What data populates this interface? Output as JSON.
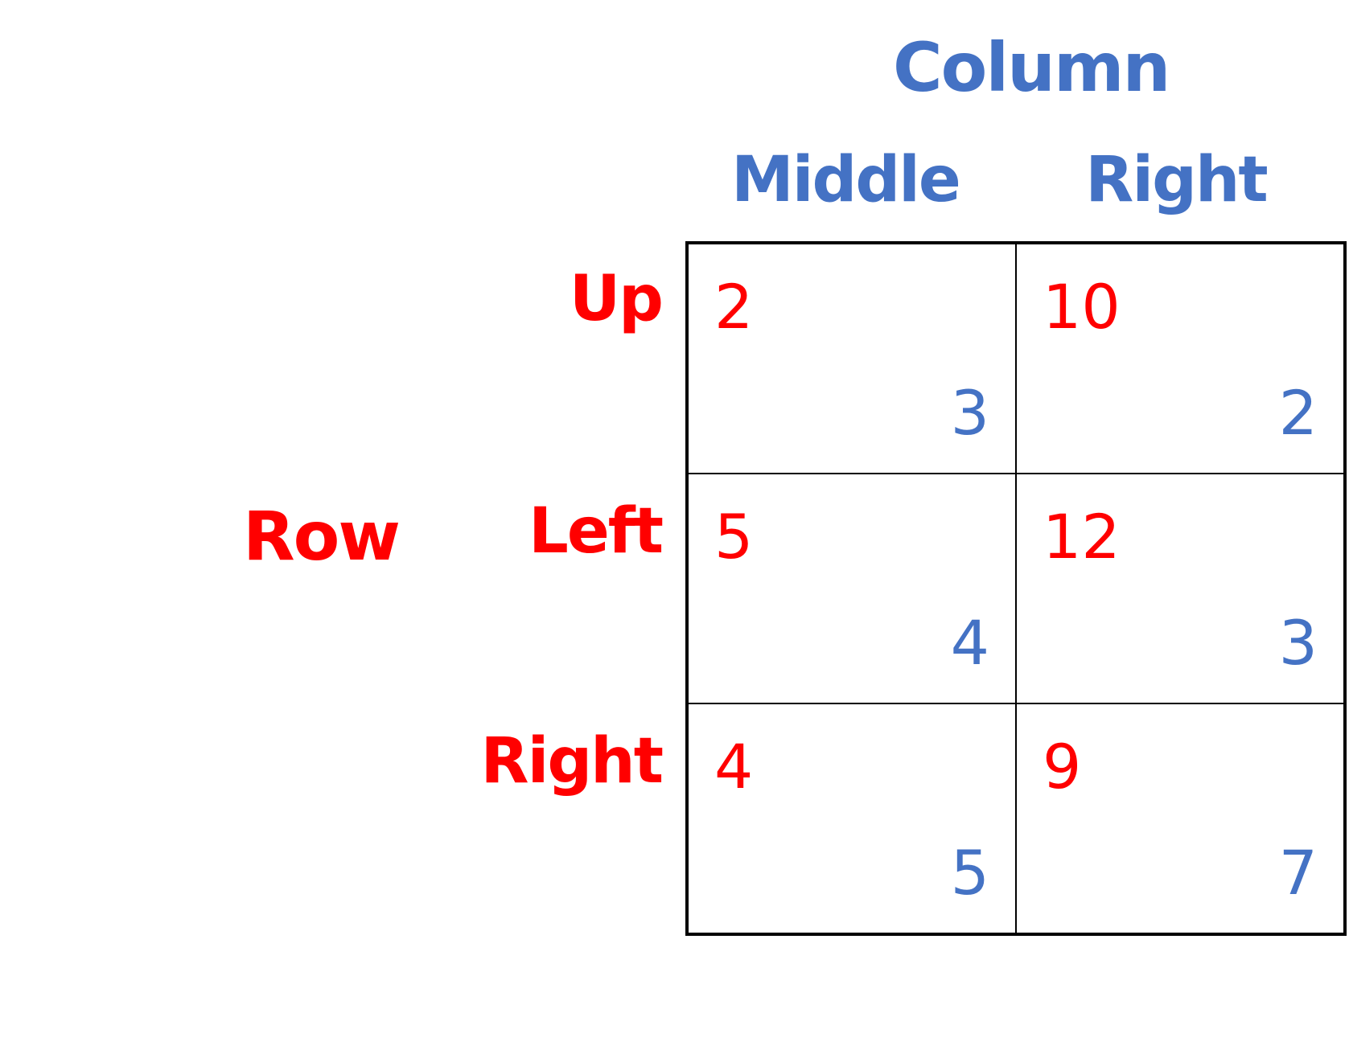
{
  "column_player": "Column",
  "row_player": "Row",
  "column_strategies": [
    "Middle",
    "Right"
  ],
  "row_strategies": [
    "Up",
    "Left",
    "Right"
  ],
  "payoffs": [
    [
      {
        "row": "2",
        "col": "3"
      },
      {
        "row": "10",
        "col": "2"
      }
    ],
    [
      {
        "row": "5",
        "col": "4"
      },
      {
        "row": "12",
        "col": "3"
      }
    ],
    [
      {
        "row": "4",
        "col": "5"
      },
      {
        "row": "9",
        "col": "7"
      }
    ]
  ],
  "colors": {
    "row_player": "#FF0000",
    "column_player": "#4472C4",
    "grid": "#000000"
  }
}
